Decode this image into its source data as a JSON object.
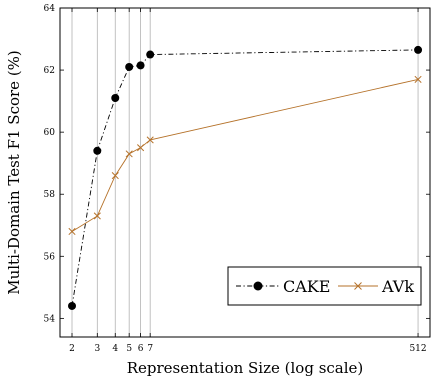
{
  "chart_data": {
    "type": "line",
    "title": "",
    "xlabel": "Representation Size (log scale)",
    "ylabel": "Multi-Domain Test F1 Score (%)",
    "x_scale": "log",
    "x": [
      2,
      3,
      4,
      5,
      6,
      7,
      512
    ],
    "x_tick_labels": [
      "2",
      "3",
      "4",
      "5",
      "6",
      "7",
      "512"
    ],
    "ylim": [
      53.4,
      64
    ],
    "y_ticks": [
      54,
      56,
      58,
      60,
      62,
      64
    ],
    "grid": "vertical",
    "legend_position": "bottom-right",
    "series": [
      {
        "name": "CAKE",
        "color": "#000000",
        "marker": "circle",
        "line_style": "dash-dot",
        "values": [
          54.4,
          59.4,
          61.1,
          62.1,
          62.15,
          62.5,
          62.65
        ]
      },
      {
        "name": "AVk",
        "color": "#b5722a",
        "marker": "x",
        "line_style": "solid",
        "values": [
          56.8,
          57.3,
          58.6,
          59.3,
          59.5,
          59.75,
          61.7
        ]
      }
    ]
  }
}
